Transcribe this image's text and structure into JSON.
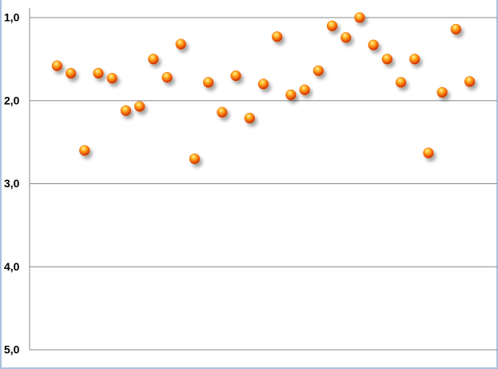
{
  "chart_data": {
    "type": "scatter",
    "x": [
      1,
      2,
      3,
      4,
      5,
      6,
      7,
      8,
      9,
      10,
      11,
      12,
      13,
      14,
      15,
      16,
      17,
      18,
      19,
      20,
      21,
      22,
      23,
      24,
      25,
      26,
      27,
      28,
      29,
      30,
      31
    ],
    "values": [
      1.58,
      1.67,
      2.6,
      1.67,
      1.73,
      2.12,
      2.07,
      1.5,
      1.72,
      1.32,
      2.7,
      1.78,
      2.14,
      1.7,
      2.21,
      1.8,
      1.23,
      1.93,
      1.87,
      1.64,
      1.1,
      1.24,
      1.0,
      1.33,
      1.5,
      1.78,
      1.5,
      2.63,
      1.9,
      1.14,
      1.77
    ],
    "color": "#f06a10",
    "xlim": [
      -1,
      33
    ],
    "ylim": [
      1,
      5
    ],
    "y_inverted": true,
    "yticks": [
      {
        "value": 1,
        "label": "1,0"
      },
      {
        "value": 2,
        "label": "2,0"
      },
      {
        "value": 3,
        "label": "3,0"
      },
      {
        "value": 4,
        "label": "4,0"
      },
      {
        "value": 5,
        "label": "5,0"
      }
    ],
    "grid": true
  }
}
